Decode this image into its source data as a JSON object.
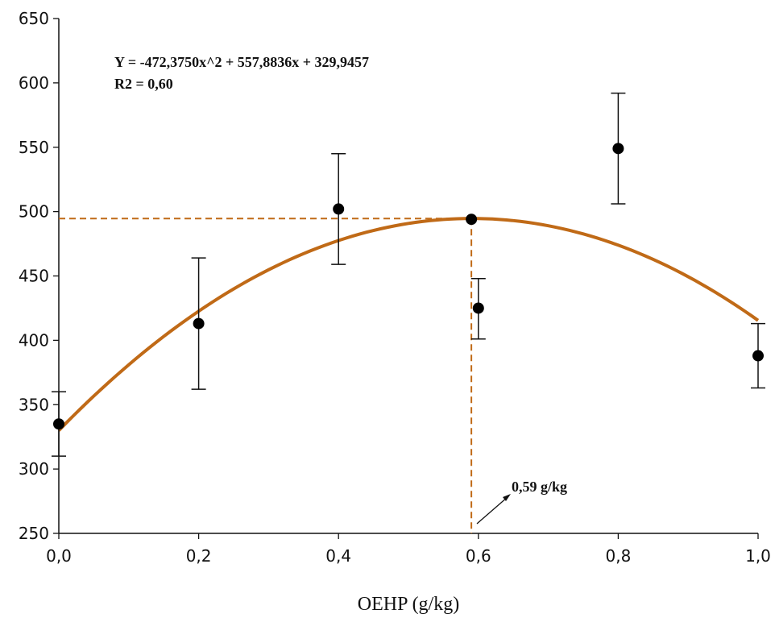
{
  "chart_data": {
    "type": "scatter",
    "title": "",
    "xlabel": "OEHP (g/kg)",
    "ylabel": "",
    "xlim": [
      0,
      1
    ],
    "ylim": [
      250,
      650
    ],
    "x_ticks": [
      0,
      0.2,
      0.4,
      0.6,
      0.8,
      1.0
    ],
    "x_tick_labels": [
      "0,0",
      "0,2",
      "0,4",
      "0,6",
      "0,8",
      "1,0"
    ],
    "y_ticks": [
      250,
      300,
      350,
      400,
      450,
      500,
      550,
      600,
      650
    ],
    "y_tick_labels": [
      "250",
      "300",
      "350",
      "400",
      "450",
      "500",
      "550",
      "600",
      "650"
    ],
    "grid": false,
    "points": [
      {
        "x": 0.0,
        "y": 335,
        "err_low": 310,
        "err_high": 360
      },
      {
        "x": 0.2,
        "y": 413,
        "err_low": 362,
        "err_high": 464
      },
      {
        "x": 0.4,
        "y": 502,
        "err_low": 459,
        "err_high": 545
      },
      {
        "x": 0.59,
        "y": 494
      },
      {
        "x": 0.6,
        "y": 425,
        "err_low": 401,
        "err_high": 448
      },
      {
        "x": 0.8,
        "y": 549,
        "err_low": 506,
        "err_high": 592
      },
      {
        "x": 1.0,
        "y": 388,
        "err_low": 363,
        "err_high": 413
      }
    ],
    "fit": {
      "a": -472.375,
      "b": 557.8836,
      "c": 329.9457,
      "color": "#c06a17"
    },
    "reference": {
      "x": 0.59,
      "y": 494.6,
      "color": "#c06a17"
    },
    "equation_text": "Y = -472,3750x^2 + 557,8836x + 329,9457",
    "r2_text": "R2 = 0,60",
    "optimum_label": "0,59 g/kg"
  }
}
